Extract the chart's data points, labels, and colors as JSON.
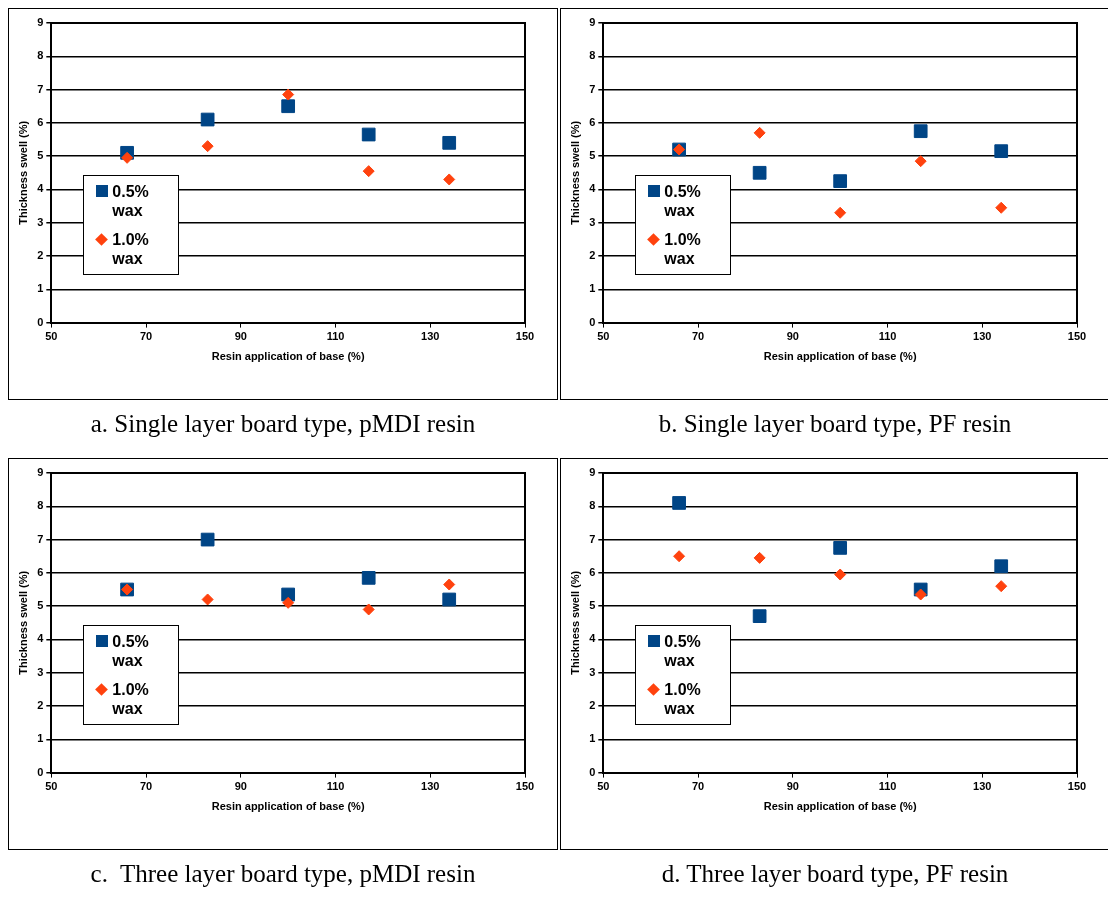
{
  "chart_data": [
    {
      "type": "scatter",
      "title": "a. Single layer board type, pMDI resin",
      "xlabel": "Resin application of base (%)",
      "ylabel": "Thickness swell (%)",
      "x": [
        66,
        83,
        100,
        117,
        134
      ],
      "xlim": [
        50,
        150
      ],
      "xticks": [
        50,
        70,
        90,
        110,
        130,
        150
      ],
      "ylim": [
        0,
        9
      ],
      "yticks": [
        0,
        1,
        2,
        3,
        4,
        5,
        6,
        7,
        8,
        9
      ],
      "grid": "y",
      "legend": "bottom left",
      "series": [
        {
          "name": "0.5% wax",
          "color": "#004586",
          "marker": "square",
          "values": [
            5.1,
            6.1,
            6.5,
            5.65,
            5.4
          ]
        },
        {
          "name": "1.0% wax",
          "color": "#ff420e",
          "marker": "diamond",
          "values": [
            4.95,
            5.3,
            6.85,
            4.55,
            4.3
          ]
        }
      ]
    },
    {
      "type": "scatter",
      "title": "b. Single layer board type, PF resin",
      "xlabel": "Resin application of base (%)",
      "ylabel": "Thickness swell (%)",
      "x": [
        66,
        83,
        100,
        117,
        134
      ],
      "xlim": [
        50,
        150
      ],
      "xticks": [
        50,
        70,
        90,
        110,
        130,
        150
      ],
      "ylim": [
        0,
        9
      ],
      "yticks": [
        0,
        1,
        2,
        3,
        4,
        5,
        6,
        7,
        8,
        9
      ],
      "grid": "y",
      "legend": "bottom left",
      "series": [
        {
          "name": "0.5% wax",
          "color": "#004586",
          "marker": "square",
          "values": [
            5.2,
            4.5,
            4.25,
            5.75,
            5.15
          ]
        },
        {
          "name": "1.0% wax",
          "color": "#ff420e",
          "marker": "diamond",
          "values": [
            5.2,
            5.7,
            3.3,
            4.85,
            3.45
          ]
        }
      ]
    },
    {
      "type": "scatter",
      "title": "c.  Three layer board type, pMDI resin",
      "xlabel": "Resin application of base (%)",
      "ylabel": "Thickness swell (%)",
      "x": [
        66,
        83,
        100,
        117,
        134
      ],
      "xlim": [
        50,
        150
      ],
      "xticks": [
        50,
        70,
        90,
        110,
        130,
        150
      ],
      "ylim": [
        0,
        9
      ],
      "yticks": [
        0,
        1,
        2,
        3,
        4,
        5,
        6,
        7,
        8,
        9
      ],
      "grid": "y",
      "legend": "bottom left",
      "series": [
        {
          "name": "0.5% wax",
          "color": "#004586",
          "marker": "square",
          "values": [
            5.5,
            7.0,
            5.35,
            5.85,
            5.2
          ]
        },
        {
          "name": "1.0% wax",
          "color": "#ff420e",
          "marker": "diamond",
          "values": [
            5.5,
            5.2,
            5.1,
            4.9,
            5.65
          ]
        }
      ]
    },
    {
      "type": "scatter",
      "title": "d. Three layer board type, PF resin",
      "xlabel": "Resin application of base (%)",
      "ylabel": "Thickness swell (%)",
      "x": [
        66,
        83,
        100,
        117,
        134
      ],
      "xlim": [
        50,
        150
      ],
      "xticks": [
        50,
        70,
        90,
        110,
        130,
        150
      ],
      "ylim": [
        0,
        9
      ],
      "yticks": [
        0,
        1,
        2,
        3,
        4,
        5,
        6,
        7,
        8,
        9
      ],
      "grid": "y",
      "legend": "bottom left",
      "series": [
        {
          "name": "0.5% wax",
          "color": "#004586",
          "marker": "square",
          "values": [
            8.1,
            4.7,
            6.75,
            5.5,
            6.2
          ]
        },
        {
          "name": "1.0% wax",
          "color": "#ff420e",
          "marker": "diamond",
          "values": [
            6.5,
            6.45,
            5.95,
            5.35,
            5.6
          ]
        }
      ]
    }
  ]
}
